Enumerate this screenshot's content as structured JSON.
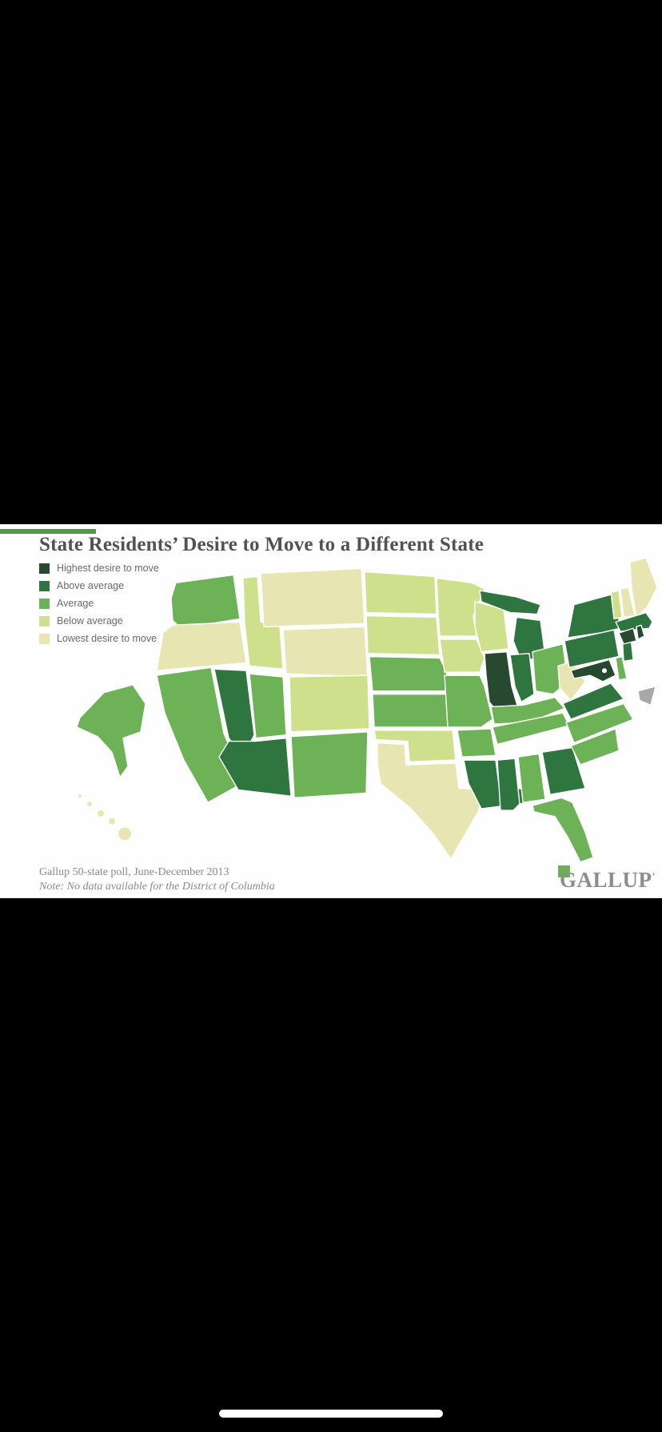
{
  "chart_data": {
    "type": "choropleth",
    "title": "State Residents’ Desire to Move to a Different State",
    "source": "Gallup 50-state poll, June-December 2013",
    "note": "Note: No data available for the District of Columbia",
    "legend_position": "top-left",
    "legend": [
      {
        "key": "highest",
        "label": "Highest desire to move",
        "color": "#26492f"
      },
      {
        "key": "above_average",
        "label": "Above average",
        "color": "#2f7540"
      },
      {
        "key": "average",
        "label": "Average",
        "color": "#6eb257"
      },
      {
        "key": "below_average",
        "label": "Below average",
        "color": "#cfe08c"
      },
      {
        "key": "lowest",
        "label": "Lowest desire to move",
        "color": "#e7e5b2"
      }
    ],
    "no_data": [
      {
        "id": "DC",
        "name": "District of Columbia"
      }
    ],
    "states": [
      {
        "id": "WA",
        "name": "Washington",
        "category": "average"
      },
      {
        "id": "OR",
        "name": "Oregon",
        "category": "lowest"
      },
      {
        "id": "CA",
        "name": "California",
        "category": "average"
      },
      {
        "id": "ID",
        "name": "Idaho",
        "category": "below_average"
      },
      {
        "id": "MT",
        "name": "Montana",
        "category": "lowest"
      },
      {
        "id": "WY",
        "name": "Wyoming",
        "category": "lowest"
      },
      {
        "id": "NV",
        "name": "Nevada",
        "category": "above_average"
      },
      {
        "id": "UT",
        "name": "Utah",
        "category": "average"
      },
      {
        "id": "CO",
        "name": "Colorado",
        "category": "below_average"
      },
      {
        "id": "AZ",
        "name": "Arizona",
        "category": "above_average"
      },
      {
        "id": "NM",
        "name": "New Mexico",
        "category": "average"
      },
      {
        "id": "ND",
        "name": "North Dakota",
        "category": "below_average"
      },
      {
        "id": "SD",
        "name": "South Dakota",
        "category": "below_average"
      },
      {
        "id": "NE",
        "name": "Nebraska",
        "category": "average"
      },
      {
        "id": "KS",
        "name": "Kansas",
        "category": "average"
      },
      {
        "id": "OK",
        "name": "Oklahoma",
        "category": "below_average"
      },
      {
        "id": "TX",
        "name": "Texas",
        "category": "lowest"
      },
      {
        "id": "MN",
        "name": "Minnesota",
        "category": "below_average"
      },
      {
        "id": "IA",
        "name": "Iowa",
        "category": "below_average"
      },
      {
        "id": "MO",
        "name": "Missouri",
        "category": "average"
      },
      {
        "id": "WI",
        "name": "Wisconsin",
        "category": "below_average"
      },
      {
        "id": "MI",
        "name": "Michigan",
        "category": "above_average"
      },
      {
        "id": "IL",
        "name": "Illinois",
        "category": "highest"
      },
      {
        "id": "IN",
        "name": "Indiana",
        "category": "above_average"
      },
      {
        "id": "OH",
        "name": "Ohio",
        "category": "average"
      },
      {
        "id": "KY",
        "name": "Kentucky",
        "category": "average"
      },
      {
        "id": "TN",
        "name": "Tennessee",
        "category": "average"
      },
      {
        "id": "AR",
        "name": "Arkansas",
        "category": "average"
      },
      {
        "id": "LA",
        "name": "Louisiana",
        "category": "above_average"
      },
      {
        "id": "MS",
        "name": "Mississippi",
        "category": "above_average"
      },
      {
        "id": "AL",
        "name": "Alabama",
        "category": "average"
      },
      {
        "id": "GA",
        "name": "Georgia",
        "category": "above_average"
      },
      {
        "id": "FL",
        "name": "Florida",
        "category": "average"
      },
      {
        "id": "SC",
        "name": "South Carolina",
        "category": "average"
      },
      {
        "id": "NC",
        "name": "North Carolina",
        "category": "average"
      },
      {
        "id": "VA",
        "name": "Virginia",
        "category": "above_average"
      },
      {
        "id": "WV",
        "name": "West Virginia",
        "category": "lowest"
      },
      {
        "id": "PA",
        "name": "Pennsylvania",
        "category": "above_average"
      },
      {
        "id": "NY",
        "name": "New York",
        "category": "above_average"
      },
      {
        "id": "VT",
        "name": "Vermont",
        "category": "below_average"
      },
      {
        "id": "NH",
        "name": "New Hampshire",
        "category": "lowest"
      },
      {
        "id": "ME",
        "name": "Maine",
        "category": "lowest"
      },
      {
        "id": "MA",
        "name": "Massachusetts",
        "category": "above_average"
      },
      {
        "id": "NJ",
        "name": "New Jersey",
        "category": "above_average"
      },
      {
        "id": "DE",
        "name": "Delaware",
        "category": "average"
      },
      {
        "id": "MD",
        "name": "Maryland",
        "category": "highest"
      },
      {
        "id": "CT",
        "name": "Connecticut",
        "category": "highest"
      },
      {
        "id": "RI",
        "name": "Rhode Island",
        "category": "highest"
      },
      {
        "id": "AK",
        "name": "Alaska",
        "category": "average"
      },
      {
        "id": "HI",
        "name": "Hawaii",
        "category": "lowest"
      }
    ]
  },
  "card": {
    "background": "#fefefe",
    "accent_color": "#57944e",
    "title_color": "#525252"
  },
  "map": {
    "stroke_color": "#ffffff",
    "dc_marker_color": "#a8a8a8",
    "dc_marker_name": "dc-no-data-arrow-icon"
  },
  "footer": {
    "logo_text": "GALLUP",
    "logo_tm": "’",
    "logo_color": "#8d8d8d",
    "brand_square_color": "#6fae5b"
  },
  "device": {
    "letterbox_color": "#000000",
    "home_indicator_color": "#ffffff"
  }
}
